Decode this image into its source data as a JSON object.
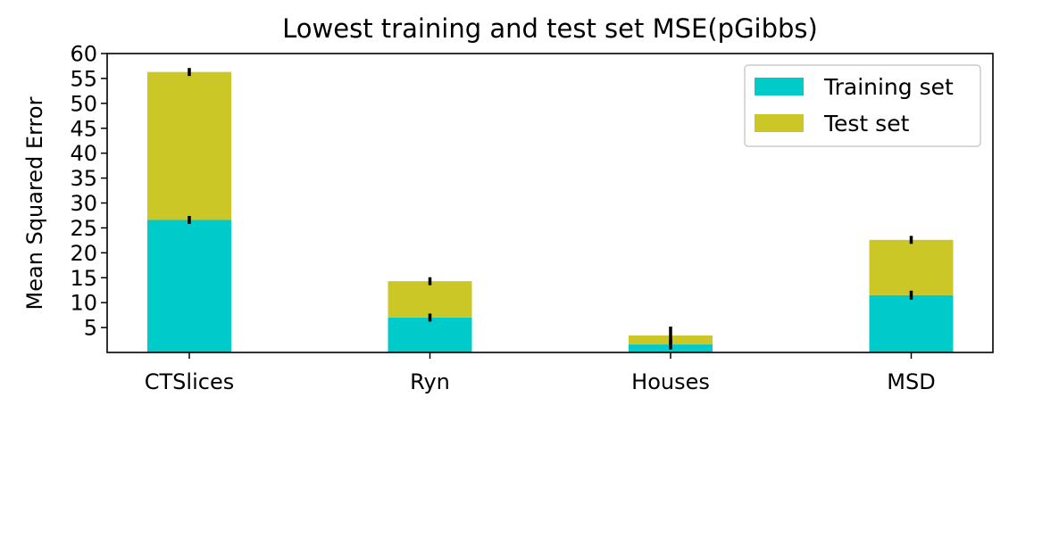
{
  "chart_data": {
    "type": "bar",
    "stacked": true,
    "title": "Lowest training and test set MSE(pGibbs)",
    "xlabel": "",
    "ylabel": "Mean Squared Error",
    "categories": [
      "CTSlices",
      "Ryn",
      "Houses",
      "MSD"
    ],
    "ylim": [
      0,
      60
    ],
    "yticks": [
      5,
      10,
      15,
      20,
      25,
      30,
      35,
      40,
      45,
      50,
      55,
      60
    ],
    "series": [
      {
        "name": "Training set",
        "color": "#00cbcb",
        "values": [
          26.6,
          7.0,
          1.6,
          11.5
        ],
        "errors": [
          0.8,
          0.8,
          1.0,
          0.9
        ]
      },
      {
        "name": "Test set",
        "color": "#cbc727",
        "values": [
          29.7,
          7.3,
          1.8,
          11.1
        ],
        "errors": [
          0.8,
          0.8,
          1.8,
          0.8
        ]
      }
    ],
    "error_color": "#000000",
    "grid": false,
    "legend_position": "top-right"
  }
}
